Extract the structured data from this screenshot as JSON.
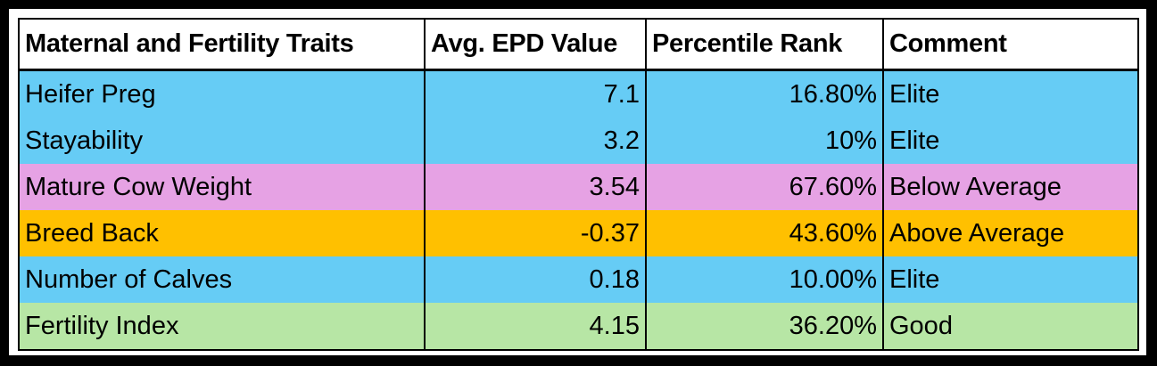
{
  "table": {
    "headers": {
      "trait": "Maternal and Fertility Traits",
      "epd": "Avg. EPD Value",
      "percentile": "Percentile Rank",
      "comment": "Comment"
    },
    "rows": [
      {
        "trait": "Heifer Preg",
        "epd": "7.1",
        "percentile": "16.80%",
        "comment": "Elite",
        "color": "#66ccf5"
      },
      {
        "trait": "Stayability",
        "epd": "3.2",
        "percentile": "10%",
        "comment": "Elite",
        "color": "#66ccf5"
      },
      {
        "trait": "Mature Cow Weight",
        "epd": "3.54",
        "percentile": "67.60%",
        "comment": "Below Average",
        "color": "#e6a2e4"
      },
      {
        "trait": "Breed Back",
        "epd": "-0.37",
        "percentile": "43.60%",
        "comment": "Above Average",
        "color": "#ffc000"
      },
      {
        "trait": "Number of Calves",
        "epd": "0.18",
        "percentile": "10.00%",
        "comment": "Elite",
        "color": "#66ccf5"
      },
      {
        "trait": "Fertility Index",
        "epd": "4.15",
        "percentile": "36.20%",
        "comment": "Good",
        "color": "#b7e6a5"
      }
    ]
  }
}
